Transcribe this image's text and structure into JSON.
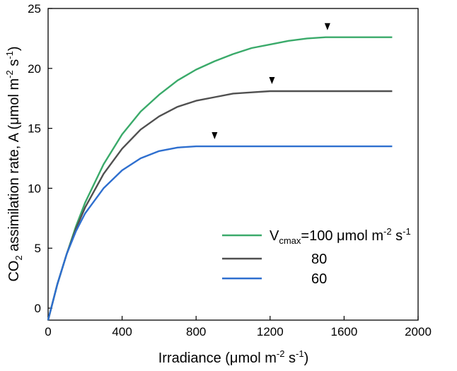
{
  "chart_data": {
    "type": "line",
    "title": "",
    "xlabel": {
      "prefix": "Irradiance (",
      "mu": "μ",
      "unit": "mol m",
      "exp1": "-2",
      "mid": " s",
      "exp2": "-1",
      "suffix": ")"
    },
    "ylabel": {
      "part1": "CO",
      "sub": "2",
      "part2": " assimilation rate, A (",
      "mu": "μ",
      "unit": "mol m",
      "exp1": "-2",
      "mid": " s",
      "exp2": "-1",
      "suffix": ")"
    },
    "xlim": [
      0,
      2000
    ],
    "ylim": [
      -1,
      25
    ],
    "xticks": [
      "0",
      "400",
      "800",
      "1200",
      "1600",
      "2000"
    ],
    "yticks": [
      "0",
      "5",
      "10",
      "15",
      "20",
      "25"
    ],
    "grid": false,
    "legend_position": "bottom-right",
    "x": [
      0,
      50,
      100,
      150,
      200,
      300,
      400,
      500,
      600,
      700,
      800,
      900,
      1000,
      1100,
      1200,
      1300,
      1400,
      1500,
      1600,
      1700,
      1800,
      1860
    ],
    "series": [
      {
        "name": "Vcmax=100",
        "color": "#3aaa6a",
        "values": [
          -1.0,
          2.0,
          4.5,
          6.8,
          8.8,
          12.0,
          14.5,
          16.4,
          17.8,
          19.0,
          19.9,
          20.6,
          21.2,
          21.7,
          22.0,
          22.3,
          22.5,
          22.6,
          22.6,
          22.6,
          22.6,
          22.6
        ],
        "marker_x": 1510,
        "marker_y": 22.6
      },
      {
        "name": "80",
        "color": "#505050",
        "values": [
          -1.0,
          2.0,
          4.5,
          6.6,
          8.4,
          11.2,
          13.3,
          14.9,
          16.0,
          16.8,
          17.3,
          17.6,
          17.9,
          18.0,
          18.1,
          18.1,
          18.1,
          18.1,
          18.1,
          18.1,
          18.1,
          18.1
        ],
        "marker_x": 1210,
        "marker_y": 18.1
      },
      {
        "name": "60",
        "color": "#2e6fcf",
        "values": [
          -1.0,
          2.0,
          4.5,
          6.4,
          7.9,
          10.0,
          11.5,
          12.5,
          13.1,
          13.4,
          13.5,
          13.5,
          13.5,
          13.5,
          13.5,
          13.5,
          13.5,
          13.5,
          13.5,
          13.5,
          13.5,
          13.5
        ],
        "marker_x": 900,
        "marker_y": 13.5
      }
    ],
    "legend": {
      "first": {
        "v": "V",
        "sub": "cmax",
        "eq": "=100 ",
        "mu": "μ",
        "unit": "mol m",
        "exp1": "-2",
        "mid": " s",
        "exp2": "-1"
      },
      "second": "80",
      "third": "60"
    }
  }
}
